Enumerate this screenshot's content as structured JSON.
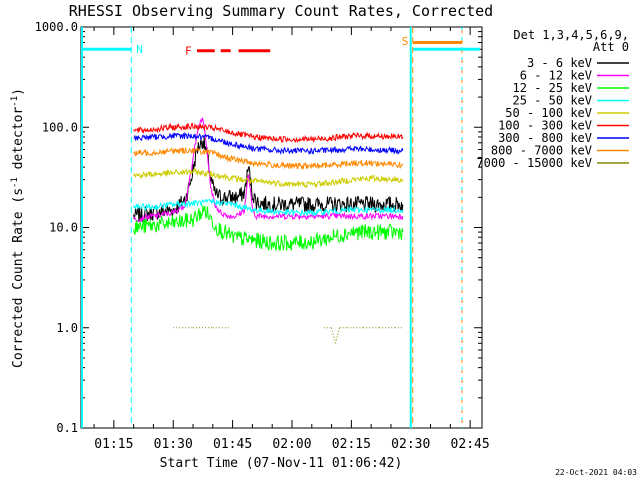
{
  "chart_data": {
    "type": "line",
    "title": "RHESSI Observing Summary Count Rates, Corrected",
    "xlabel": "Start Time (07-Nov-11 01:06:42)",
    "ylabel_main": "Corrected Count Rate (s",
    "ylabel_sup1": "-1",
    "ylabel_mid": " detector",
    "ylabel_sup2": "-1",
    "ylabel_end": ")",
    "y_scale": "log",
    "ylim": [
      0.1,
      1000
    ],
    "xlim_minutes": [
      66.7,
      168
    ],
    "y_ticks": [
      {
        "value": 0.1,
        "label": "0.1"
      },
      {
        "value": 1,
        "label": "1.0"
      },
      {
        "value": 10,
        "label": "10.0"
      },
      {
        "value": 100,
        "label": "100.0"
      },
      {
        "value": 1000,
        "label": "1000.0"
      }
    ],
    "x_ticks": [
      {
        "minute": 75,
        "label": "01:15"
      },
      {
        "minute": 90,
        "label": "01:30"
      },
      {
        "minute": 105,
        "label": "01:45"
      },
      {
        "minute": 120,
        "label": "02:00"
      },
      {
        "minute": 135,
        "label": "02:15"
      },
      {
        "minute": 150,
        "label": "02:30"
      },
      {
        "minute": 165,
        "label": "02:45"
      }
    ],
    "legend_title_1": "Det 1,3,4,5,6,9,",
    "legend_title_2": "Att 0",
    "legend_position": "right",
    "series": [
      {
        "name": "3 - 6 keV",
        "color": "#000000",
        "x": [
          80,
          85,
          90,
          93,
          94.5,
          96,
          97.5,
          98.5,
          99.5,
          100.5,
          102,
          104,
          106,
          108,
          109,
          110,
          111,
          114,
          120,
          130,
          140,
          148
        ],
        "y": [
          13,
          14,
          15,
          19,
          30,
          60,
          75,
          55,
          30,
          22,
          20,
          20,
          20,
          22,
          40,
          22,
          18,
          17,
          17,
          17,
          17,
          17
        ]
      },
      {
        "name": "6 - 12 keV",
        "color": "#ff00ff",
        "x": [
          80,
          85,
          90,
          93,
          94.5,
          96,
          97.5,
          98.5,
          99.5,
          100.5,
          102,
          104,
          106,
          108,
          109,
          110,
          111,
          114,
          120,
          130,
          140,
          148
        ],
        "y": [
          12,
          13,
          14,
          17,
          35,
          90,
          125,
          60,
          25,
          17,
          14,
          13,
          13,
          15,
          35,
          15,
          13,
          13,
          13,
          13,
          13,
          13
        ]
      },
      {
        "name": "12 - 25 keV",
        "color": "#00ff00",
        "x": [
          80,
          85,
          90,
          95,
          98,
          101,
          105,
          110,
          115,
          120,
          125,
          130,
          135,
          140,
          148
        ],
        "y": [
          10,
          10.5,
          11,
          12,
          15,
          10,
          8,
          7.5,
          7,
          7,
          7.2,
          8,
          9,
          9,
          9
        ]
      },
      {
        "name": "25 - 50 keV",
        "color": "#00ffff",
        "x": [
          80,
          85,
          90,
          95,
          100,
          105,
          110,
          115,
          120,
          125,
          130,
          135,
          140,
          148
        ],
        "y": [
          16,
          16,
          17,
          17.5,
          18,
          17,
          15,
          14.5,
          14,
          14,
          14.5,
          15,
          15,
          15
        ]
      },
      {
        "name": "50 - 100 keV",
        "color": "#cccc00",
        "x": [
          80,
          85,
          90,
          95,
          100,
          105,
          110,
          115,
          120,
          125,
          130,
          135,
          140,
          148
        ],
        "y": [
          33,
          34,
          35,
          36,
          34,
          31,
          29,
          28,
          27,
          27,
          28,
          30,
          31,
          30
        ]
      },
      {
        "name": "100 - 300 keV",
        "color": "#ff0000",
        "x": [
          80,
          85,
          90,
          95,
          100,
          105,
          110,
          115,
          120,
          125,
          130,
          135,
          140,
          148
        ],
        "y": [
          92,
          95,
          100,
          102,
          98,
          88,
          80,
          77,
          76,
          76,
          78,
          82,
          82,
          80
        ]
      },
      {
        "name": "300 - 800 keV",
        "color": "#0000ff",
        "x": [
          80,
          85,
          90,
          95,
          100,
          105,
          110,
          115,
          120,
          125,
          130,
          135,
          140,
          148
        ],
        "y": [
          78,
          80,
          82,
          82,
          77,
          68,
          62,
          59,
          58,
          58,
          59,
          61,
          60,
          58
        ]
      },
      {
        "name": "800 - 7000 keV",
        "color": "#ff8800",
        "x": [
          80,
          85,
          90,
          95,
          100,
          105,
          110,
          115,
          120,
          125,
          130,
          135,
          140,
          148
        ],
        "y": [
          55,
          56,
          58,
          59,
          55,
          48,
          44,
          42,
          41,
          41,
          42,
          44,
          44,
          42
        ]
      },
      {
        "name": "7000 - 15000 keV",
        "color": "#888800",
        "x": [
          90,
          95,
          100,
          104,
          128,
          130,
          131,
          132,
          134,
          138,
          142,
          146,
          148
        ],
        "y": [
          1,
          1,
          1,
          1,
          1,
          1,
          0.7,
          1,
          1,
          1,
          1,
          1,
          1
        ]
      }
    ],
    "night_periods": [
      [
        66.7,
        79.4
      ],
      [
        150.5,
        168
      ]
    ],
    "saa_period": [
      150.5,
      168
    ],
    "flare_flag_label": "F",
    "flare_segments": [
      [
        96,
        100.5
      ],
      [
        102,
        104.5
      ],
      [
        106.5,
        114.5
      ]
    ],
    "night_label": "N",
    "saa_label": "S",
    "footer_date": "22-Oct-2021 04:03"
  }
}
